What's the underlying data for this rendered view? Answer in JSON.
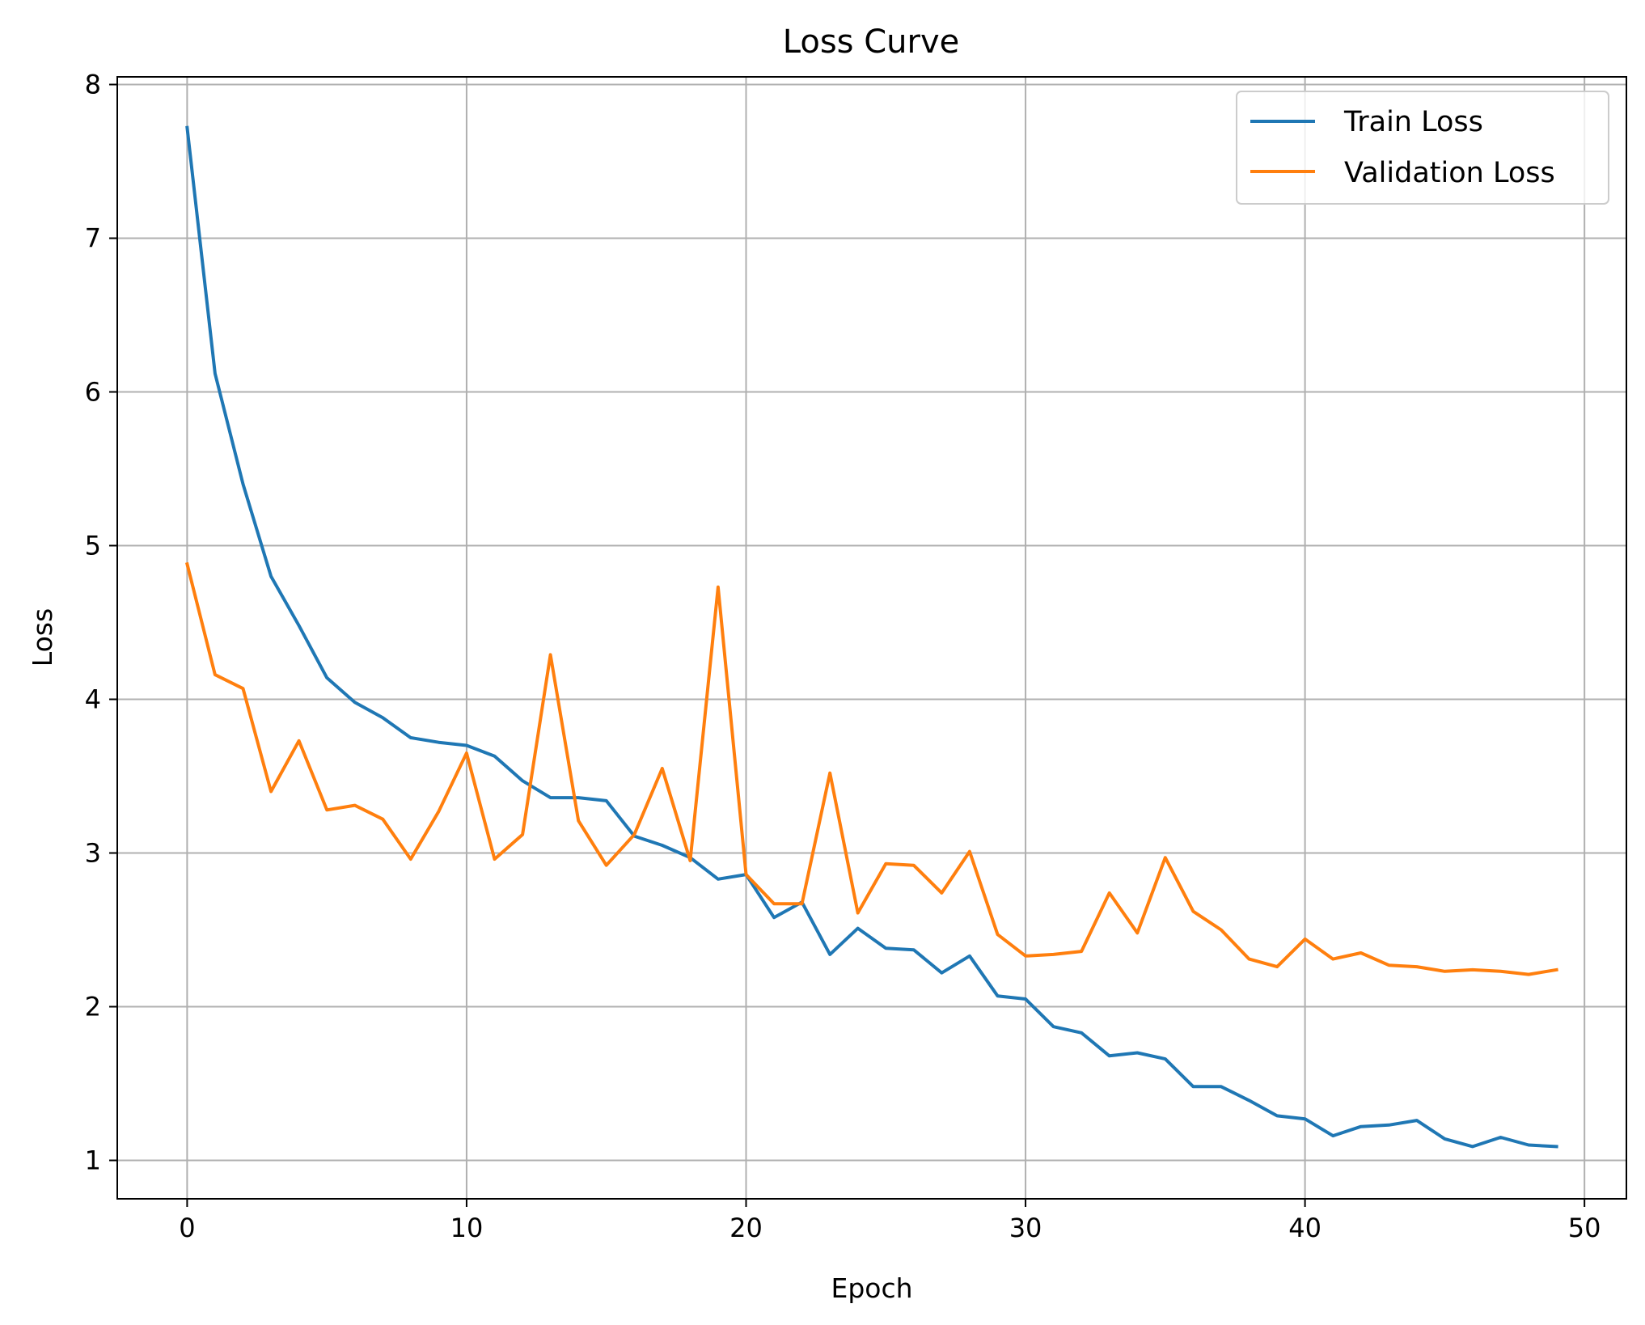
{
  "chart_data": {
    "type": "line",
    "title": "Loss Curve",
    "xlabel": "Epoch",
    "ylabel": "Loss",
    "xlim": [
      -2.5,
      51.5
    ],
    "ylim": [
      0.75,
      8.05
    ],
    "xticks": [
      0,
      10,
      20,
      30,
      40,
      50
    ],
    "yticks": [
      1,
      2,
      3,
      4,
      5,
      6,
      7,
      8
    ],
    "grid": true,
    "legend_position": "top-right",
    "x": [
      0,
      1,
      2,
      3,
      4,
      5,
      6,
      7,
      8,
      9,
      10,
      11,
      12,
      13,
      14,
      15,
      16,
      17,
      18,
      19,
      20,
      21,
      22,
      23,
      24,
      25,
      26,
      27,
      28,
      29,
      30,
      31,
      32,
      33,
      34,
      35,
      36,
      37,
      38,
      39,
      40,
      41,
      42,
      43,
      44,
      45,
      46,
      47,
      48,
      49
    ],
    "series": [
      {
        "name": "Train Loss",
        "color": "#1f77b4",
        "values": [
          7.72,
          6.12,
          5.4,
          4.8,
          4.48,
          4.14,
          3.98,
          3.88,
          3.75,
          3.72,
          3.7,
          3.63,
          3.47,
          3.36,
          3.36,
          3.34,
          3.11,
          3.05,
          2.97,
          2.83,
          2.86,
          2.58,
          2.68,
          2.34,
          2.51,
          2.38,
          2.37,
          2.22,
          2.33,
          2.07,
          2.05,
          1.87,
          1.83,
          1.68,
          1.7,
          1.66,
          1.48,
          1.48,
          1.39,
          1.29,
          1.27,
          1.16,
          1.22,
          1.23,
          1.26,
          1.14,
          1.09,
          1.15,
          1.1,
          1.09
        ]
      },
      {
        "name": "Validation Loss",
        "color": "#ff7f0e",
        "values": [
          4.88,
          4.16,
          4.07,
          3.4,
          3.73,
          3.28,
          3.31,
          3.22,
          2.96,
          3.27,
          3.65,
          2.96,
          3.12,
          4.29,
          3.21,
          2.92,
          3.12,
          3.55,
          2.95,
          4.73,
          2.86,
          2.67,
          2.67,
          3.52,
          2.61,
          2.93,
          2.92,
          2.74,
          3.01,
          2.47,
          2.33,
          2.34,
          2.36,
          2.74,
          2.48,
          2.97,
          2.62,
          2.5,
          2.31,
          2.26,
          2.44,
          2.31,
          2.35,
          2.27,
          2.26,
          2.23,
          2.24,
          2.23,
          2.21,
          2.24
        ]
      }
    ]
  }
}
